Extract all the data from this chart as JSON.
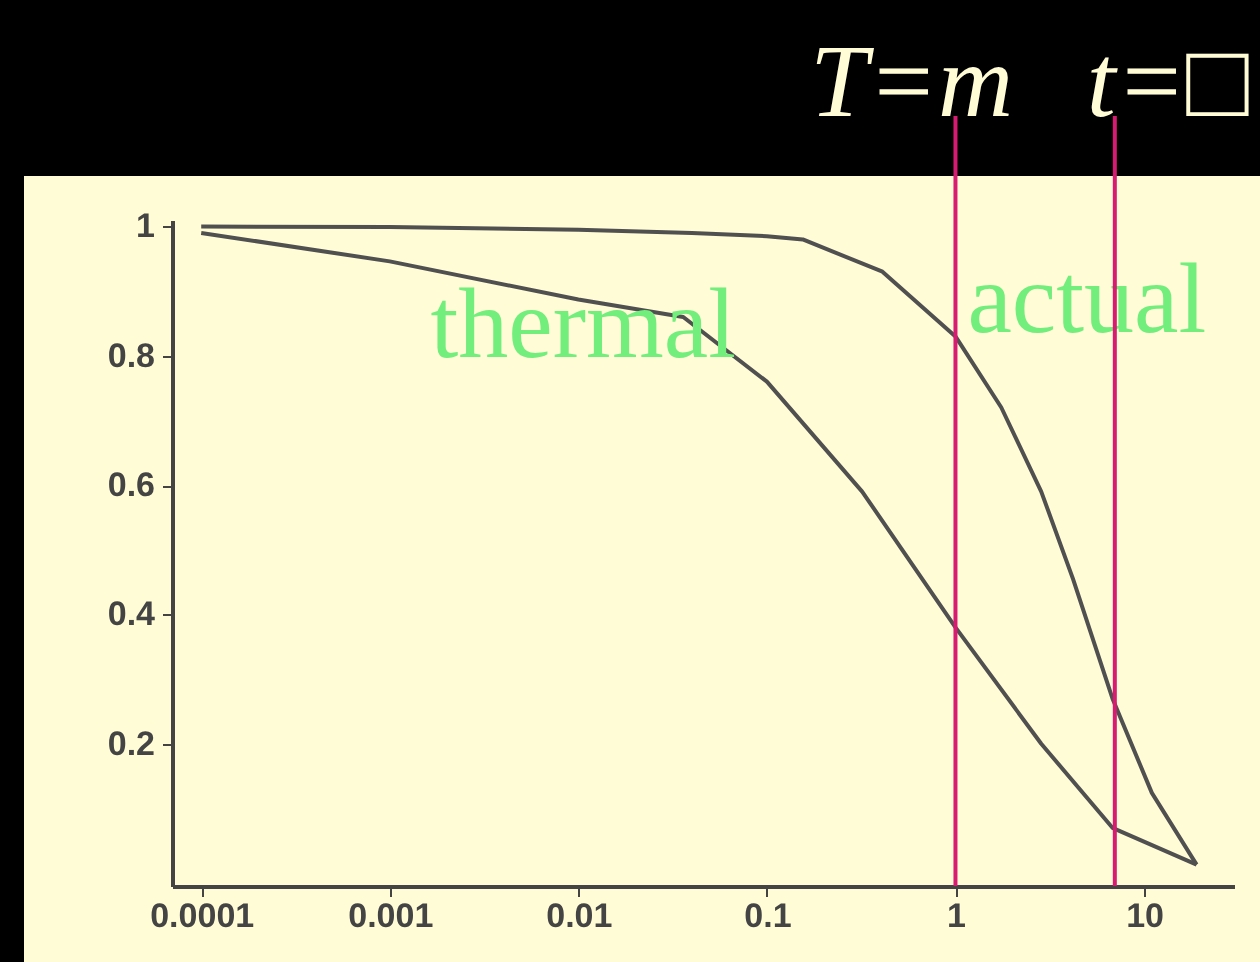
{
  "chart_data": {
    "type": "line",
    "series": [
      {
        "name": "thermal",
        "color": "#505050",
        "x": [
          0.0001,
          0.001,
          0.01,
          0.036,
          0.1,
          0.32,
          1,
          2.85,
          6.8,
          19
        ],
        "values": [
          0.99,
          0.946,
          0.887,
          0.86,
          0.76,
          0.59,
          0.38,
          0.2,
          0.07,
          0.013
        ]
      },
      {
        "name": "actual",
        "color": "#505050",
        "x": [
          0.0001,
          0.001,
          0.01,
          0.04,
          0.1,
          0.155,
          0.41,
          1,
          1.75,
          2.85,
          4.2,
          6.8,
          11,
          19
        ],
        "values": [
          1,
          0.999,
          0.995,
          0.99,
          0.985,
          0.98,
          0.93,
          0.83,
          0.72,
          0.59,
          0.455,
          0.27,
          0.124,
          0.013
        ]
      }
    ],
    "xlim": [
      7e-05,
      30
    ],
    "ylim": [
      -0.02,
      1.01
    ],
    "xticks": [
      0.0001,
      0.001,
      0.01,
      0.1,
      1,
      10
    ],
    "yticks": [
      0.2,
      0.4,
      0.6,
      0.8,
      1
    ],
    "log": "x",
    "marker": "none",
    "ref_lines": [
      {
        "axis": "x",
        "value": 1,
        "label": "T=m",
        "color": "#d81b72"
      },
      {
        "axis": "x",
        "value": 7,
        "label": "t=□",
        "color": "#d81b72"
      }
    ]
  }
}
